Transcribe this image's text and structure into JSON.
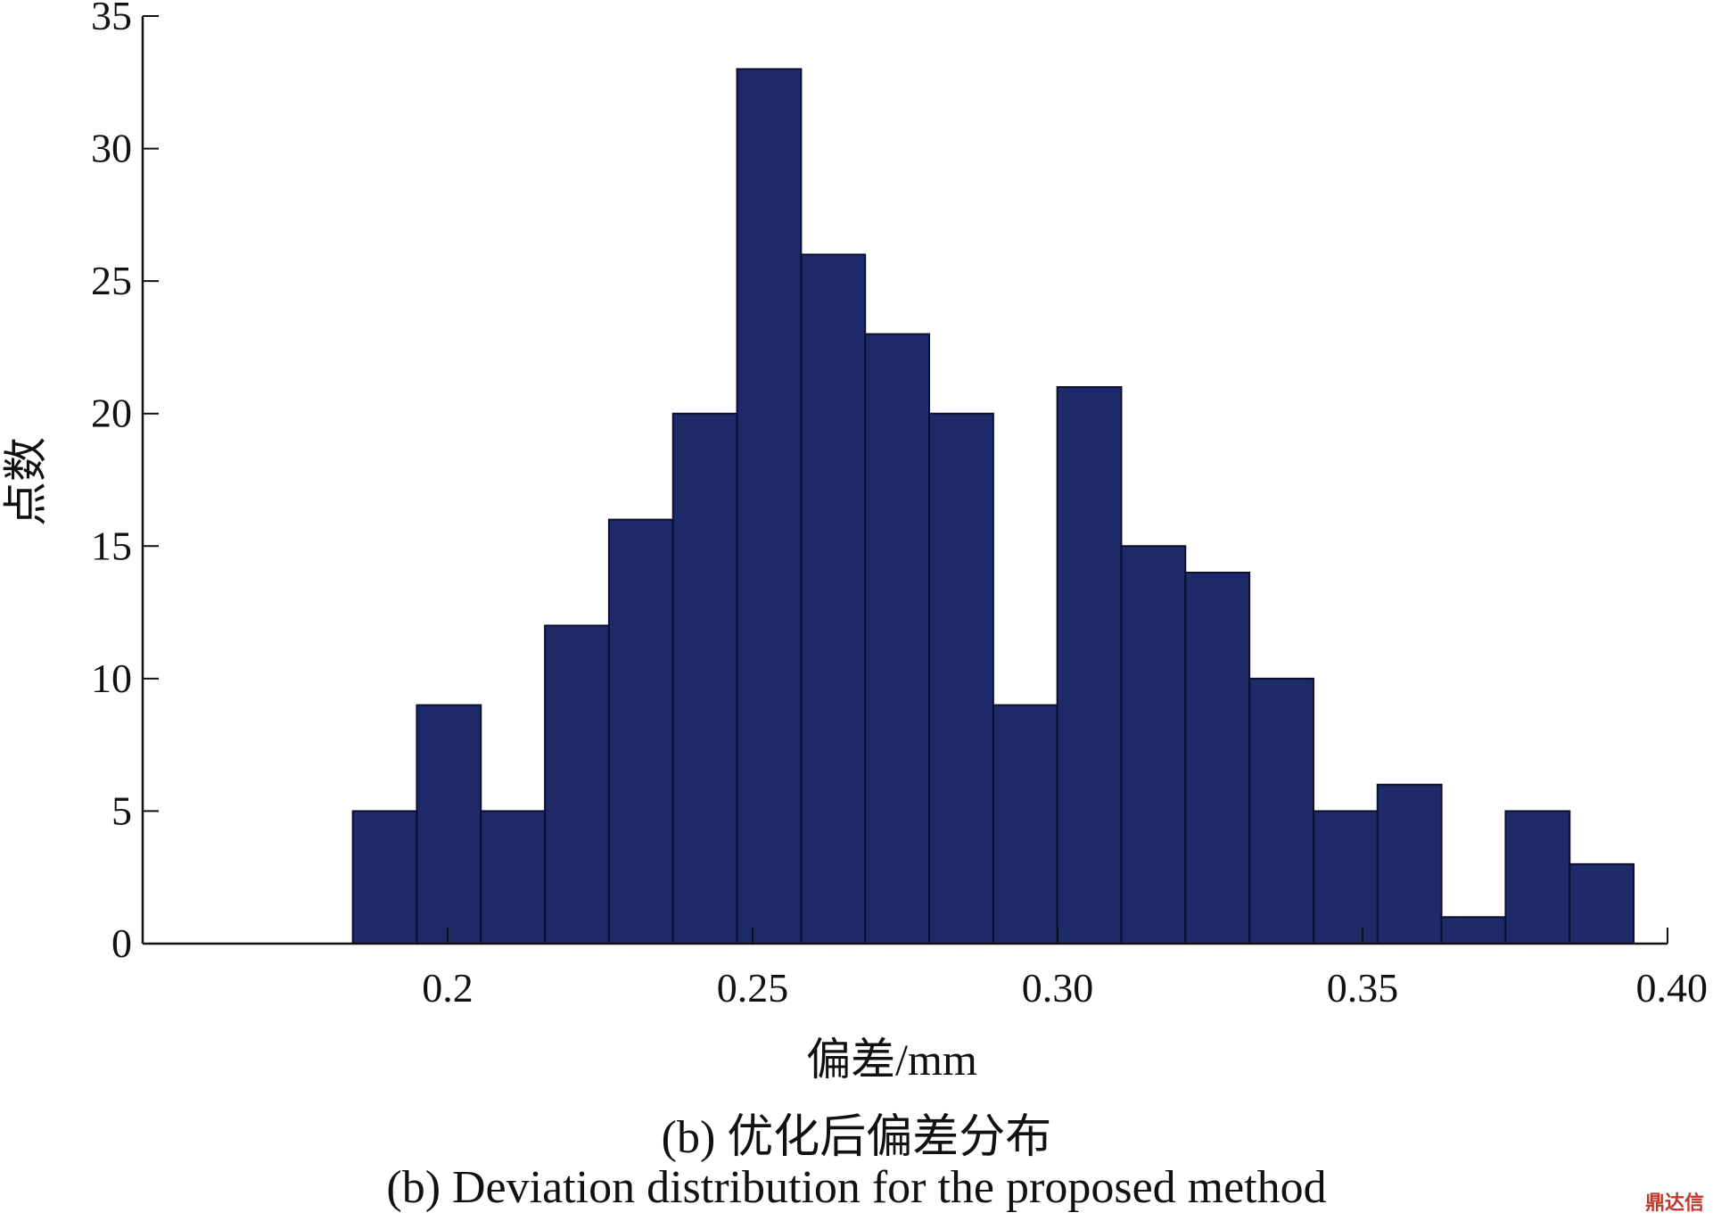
{
  "chart_data": {
    "type": "bar",
    "title": "",
    "xlabel": "偏差/mm",
    "ylabel": "点数",
    "xlim": [
      0.15,
      0.4
    ],
    "ylim": [
      0,
      35
    ],
    "bin_width": 0.0105,
    "bins": [
      {
        "x": 0.1897,
        "y": 5
      },
      {
        "x": 0.2002,
        "y": 9
      },
      {
        "x": 0.2107,
        "y": 5
      },
      {
        "x": 0.2212,
        "y": 12
      },
      {
        "x": 0.2317,
        "y": 16
      },
      {
        "x": 0.2422,
        "y": 20
      },
      {
        "x": 0.2527,
        "y": 33
      },
      {
        "x": 0.2632,
        "y": 26
      },
      {
        "x": 0.2737,
        "y": 23
      },
      {
        "x": 0.2842,
        "y": 20
      },
      {
        "x": 0.2947,
        "y": 9
      },
      {
        "x": 0.3052,
        "y": 21
      },
      {
        "x": 0.3157,
        "y": 15
      },
      {
        "x": 0.3262,
        "y": 14
      },
      {
        "x": 0.3367,
        "y": 10
      },
      {
        "x": 0.3472,
        "y": 5
      },
      {
        "x": 0.3577,
        "y": 6
      },
      {
        "x": 0.3682,
        "y": 1
      },
      {
        "x": 0.3787,
        "y": 5
      },
      {
        "x": 0.3892,
        "y": 3
      }
    ],
    "xticks": [
      {
        "value": 0.2,
        "label": "0.2"
      },
      {
        "value": 0.25,
        "label": "0.25"
      },
      {
        "value": 0.3,
        "label": "0.30"
      },
      {
        "value": 0.35,
        "label": "0.35"
      },
      {
        "value": 0.4,
        "label": "0.40"
      }
    ],
    "yticks": [
      {
        "value": 0,
        "label": "0"
      },
      {
        "value": 5,
        "label": "5"
      },
      {
        "value": 10,
        "label": "10"
      },
      {
        "value": 15,
        "label": "15"
      },
      {
        "value": 20,
        "label": "20"
      },
      {
        "value": 25,
        "label": "25"
      },
      {
        "value": 30,
        "label": "30"
      },
      {
        "value": 35,
        "label": "35"
      }
    ],
    "grid": false,
    "legend": "none",
    "bar_color": "#1f2a6b",
    "bar_edge_color": "#0a0f2e"
  },
  "captions": {
    "cn": "(b) 优化后偏差分布",
    "en": "(b) Deviation distribution for the proposed method"
  },
  "watermark": "鼎达信"
}
